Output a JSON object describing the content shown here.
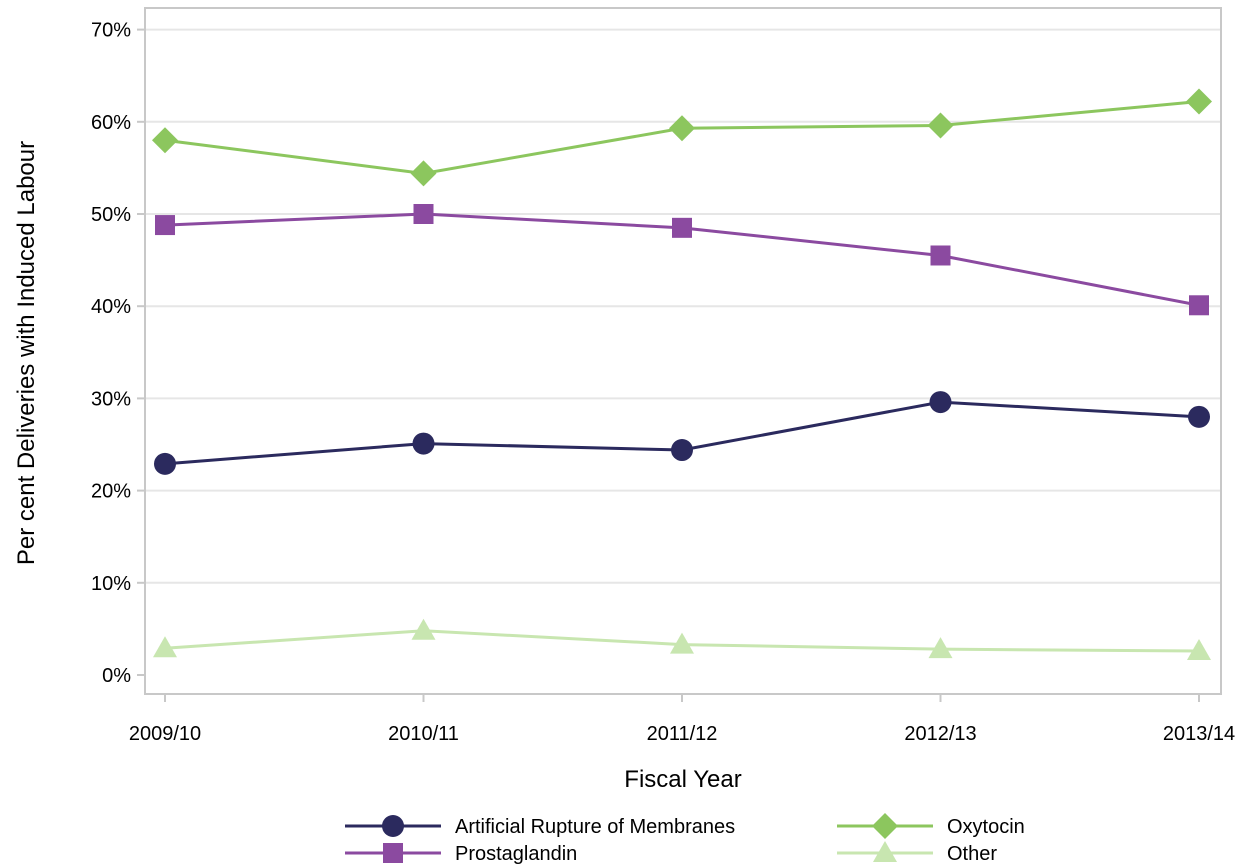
{
  "chart_data": {
    "type": "line",
    "title": "",
    "xlabel": "Fiscal Year",
    "ylabel": "Per cent Deliveries with Induced Labour",
    "categories": [
      "2009/10",
      "2010/11",
      "2011/12",
      "2012/13",
      "2013/14"
    ],
    "ylim": [
      0,
      70
    ],
    "yticks": [
      0,
      10,
      20,
      30,
      40,
      50,
      60,
      70
    ],
    "ytick_labels": [
      "0%",
      "10%",
      "20%",
      "30%",
      "40%",
      "50%",
      "60%",
      "70%"
    ],
    "grid": "horizontal",
    "legend_position": "bottom",
    "series": [
      {
        "name": "Artificial Rupture of Membranes",
        "color": "#2b2a5e",
        "marker": "circle",
        "values": [
          22.9,
          25.1,
          24.4,
          29.6,
          28.0
        ]
      },
      {
        "name": "Oxytocin",
        "color": "#8cc65e",
        "marker": "diamond",
        "values": [
          58.0,
          54.4,
          59.3,
          59.6,
          62.2
        ]
      },
      {
        "name": "Prostaglandin",
        "color": "#8b4aa0",
        "marker": "square",
        "values": [
          48.8,
          50.0,
          48.5,
          45.5,
          40.1
        ]
      },
      {
        "name": "Other",
        "color": "#c8e6b0",
        "marker": "triangle",
        "values": [
          2.9,
          4.8,
          3.3,
          2.8,
          2.6
        ]
      }
    ]
  }
}
